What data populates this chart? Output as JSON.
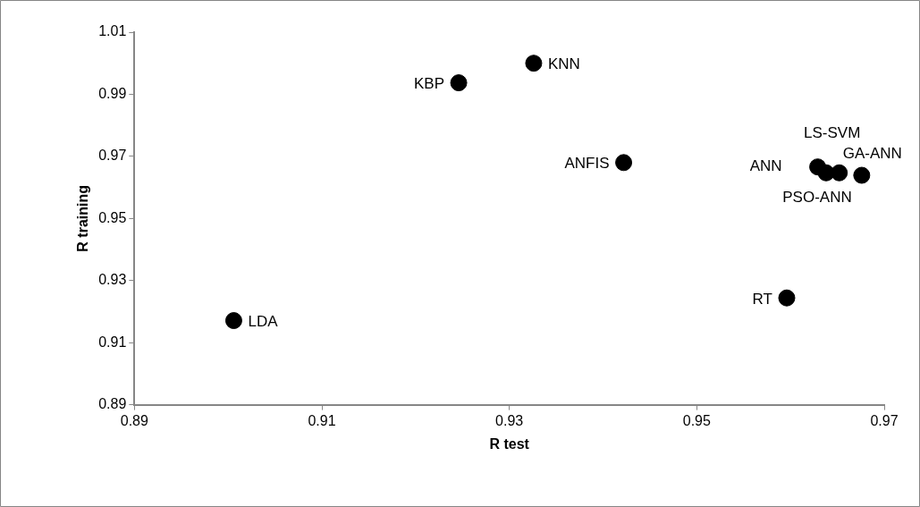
{
  "chart_data": {
    "type": "scatter",
    "xlabel": "R test",
    "ylabel": "R training",
    "x": [
      0.9006,
      0.9246,
      0.9326,
      0.9422,
      0.9629,
      0.9638,
      0.9652,
      0.9676,
      0.9596
    ],
    "series": [
      {
        "color": "#000000",
        "values": [
          0.9171,
          0.9937,
          1.0,
          0.968,
          0.9666,
          0.9647,
          0.9647,
          0.9639,
          0.9244
        ]
      }
    ],
    "xlim": [
      0.89,
      0.97
    ],
    "xticks": [
      0.89,
      0.91,
      0.93,
      0.95,
      0.97
    ],
    "ylim": [
      0.89,
      1.01
    ],
    "yticks": [
      0.89,
      0.91,
      0.93,
      0.95,
      0.97,
      0.99,
      1.01
    ],
    "marker": "circle",
    "grid": false,
    "legend": false,
    "annotations": [
      {
        "text": "LDA",
        "x": 0.9006,
        "y": 0.9171
      },
      {
        "text": "KBP",
        "x": 0.9246,
        "y": 0.9937
      },
      {
        "text": "KNN",
        "x": 0.9326,
        "y": 1.0
      },
      {
        "text": "ANFIS",
        "x": 0.9422,
        "y": 0.968
      },
      {
        "text": "ANN",
        "x": 0.9629,
        "y": 0.9666
      },
      {
        "text": "PSO-ANN",
        "x": 0.9638,
        "y": 0.9647
      },
      {
        "text": "LS-SVM",
        "x": 0.9652,
        "y": 0.9647
      },
      {
        "text": "GA-ANN",
        "x": 0.9676,
        "y": 0.9639
      },
      {
        "text": "RT",
        "x": 0.9596,
        "y": 0.9244
      }
    ]
  }
}
